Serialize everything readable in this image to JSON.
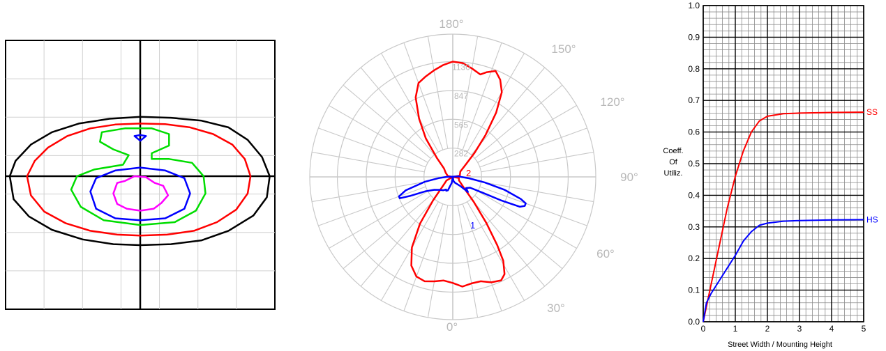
{
  "isolux": {
    "type": "contour",
    "title": "",
    "contours": [
      {
        "color": "#000000",
        "points": [
          [
            -6.8,
            0
          ],
          [
            -6.6,
            -1.2
          ],
          [
            -5.8,
            -2.1
          ],
          [
            -4.6,
            -2.8
          ],
          [
            -3.0,
            -3.3
          ],
          [
            -1.4,
            -3.55
          ],
          [
            0,
            -3.6
          ],
          [
            1.6,
            -3.55
          ],
          [
            3.2,
            -3.35
          ],
          [
            4.6,
            -2.85
          ],
          [
            5.9,
            -2.05
          ],
          [
            6.6,
            -1.1
          ],
          [
            6.75,
            0
          ],
          [
            6.35,
            1.0
          ],
          [
            5.6,
            1.9
          ],
          [
            4.6,
            2.55
          ],
          [
            3.2,
            2.9
          ],
          [
            1.6,
            3.05
          ],
          [
            0,
            3.1
          ],
          [
            -1.6,
            3.0
          ],
          [
            -3.2,
            2.75
          ],
          [
            -4.6,
            2.3
          ],
          [
            -5.7,
            1.65
          ],
          [
            -6.5,
            0.8
          ]
        ]
      },
      {
        "color": "#ff0000",
        "points": [
          [
            -5.9,
            0
          ],
          [
            -5.7,
            -1.0
          ],
          [
            -5.0,
            -1.85
          ],
          [
            -3.9,
            -2.45
          ],
          [
            -2.6,
            -2.85
          ],
          [
            -1.2,
            -3.05
          ],
          [
            0,
            -3.1
          ],
          [
            1.4,
            -3.05
          ],
          [
            2.8,
            -2.85
          ],
          [
            4.0,
            -2.4
          ],
          [
            5.0,
            -1.75
          ],
          [
            5.6,
            -0.9
          ],
          [
            5.75,
            0
          ],
          [
            5.45,
            0.9
          ],
          [
            4.8,
            1.65
          ],
          [
            3.8,
            2.2
          ],
          [
            2.6,
            2.55
          ],
          [
            1.3,
            2.72
          ],
          [
            0,
            2.75
          ],
          [
            -1.3,
            2.7
          ],
          [
            -2.6,
            2.5
          ],
          [
            -3.8,
            2.1
          ],
          [
            -4.8,
            1.5
          ],
          [
            -5.5,
            0.8
          ]
        ]
      },
      {
        "color": "#00dd00",
        "points": [
          [
            -2.0,
            2.3
          ],
          [
            -0.8,
            2.5
          ],
          [
            0.6,
            2.5
          ],
          [
            1.5,
            2.2
          ],
          [
            1.5,
            1.6
          ],
          [
            0.6,
            1.2
          ],
          [
            0.6,
            0.9
          ],
          [
            1.5,
            0.9
          ],
          [
            2.7,
            0.7
          ],
          [
            3.3,
            0
          ],
          [
            3.4,
            -0.9
          ],
          [
            2.9,
            -1.8
          ],
          [
            1.8,
            -2.4
          ],
          [
            0,
            -2.55
          ],
          [
            -1.9,
            -2.3
          ],
          [
            -3.1,
            -1.6
          ],
          [
            -3.6,
            -0.7
          ],
          [
            -3.3,
            0
          ],
          [
            -2.4,
            0.35
          ],
          [
            -0.9,
            0.6
          ],
          [
            -0.6,
            1.1
          ],
          [
            -1.4,
            1.4
          ],
          [
            -2.1,
            1.8
          ]
        ]
      },
      {
        "color": "#0000ff",
        "points": [
          [
            -2.6,
            -0.8
          ],
          [
            -2.3,
            -0.1
          ],
          [
            -1.3,
            0.3
          ],
          [
            0,
            0.45
          ],
          [
            1.3,
            0.3
          ],
          [
            2.3,
            -0.1
          ],
          [
            2.6,
            -0.9
          ],
          [
            2.3,
            -1.7
          ],
          [
            1.3,
            -2.2
          ],
          [
            0,
            -2.3
          ],
          [
            -1.3,
            -2.2
          ],
          [
            -2.3,
            -1.7
          ]
        ]
      },
      {
        "color": "#0000ff",
        "points": [
          [
            -0.3,
            2.1
          ],
          [
            0,
            1.85
          ],
          [
            0.3,
            2.1
          ],
          [
            0,
            2.15
          ]
        ]
      },
      {
        "color": "#ff00ff",
        "points": [
          [
            -1.4,
            -0.9
          ],
          [
            -1.2,
            -0.35
          ],
          [
            -0.8,
            -0.25
          ],
          [
            -0.3,
            0
          ],
          [
            0.3,
            -0.05
          ],
          [
            0.75,
            -0.35
          ],
          [
            1.2,
            -0.5
          ],
          [
            1.45,
            -1.0
          ],
          [
            1.1,
            -1.4
          ],
          [
            0.7,
            -1.7
          ],
          [
            0,
            -1.8
          ],
          [
            -0.7,
            -1.7
          ],
          [
            -1.2,
            -1.45
          ]
        ]
      }
    ]
  },
  "polar": {
    "type": "polar",
    "angle_labels": [
      "180°",
      "150°",
      "120°",
      "90°",
      "60°",
      "30°",
      "0°"
    ],
    "radial_labels": [
      "1130",
      "847",
      "565",
      "282"
    ],
    "radial_values": [
      1130,
      847,
      565,
      282
    ],
    "rmax": 1400,
    "curve_labels": [
      "2",
      "1"
    ],
    "series": [
      {
        "name": "2",
        "color": "#ff0000",
        "points": [
          [
            180,
            1130
          ],
          [
            175,
            1120
          ],
          [
            170,
            1080
          ],
          [
            165,
            1040
          ],
          [
            162,
            1080
          ],
          [
            158,
            1120
          ],
          [
            154,
            1060
          ],
          [
            150,
            960
          ],
          [
            146,
            760
          ],
          [
            142,
            520
          ],
          [
            138,
            320
          ],
          [
            134,
            180
          ],
          [
            125,
            90
          ],
          [
            100,
            70
          ],
          [
            90,
            0
          ],
          [
            80,
            60
          ],
          [
            60,
            70
          ],
          [
            45,
            160
          ],
          [
            40,
            320
          ],
          [
            36,
            560
          ],
          [
            33,
            800
          ],
          [
            31,
            960
          ],
          [
            28,
            1080
          ],
          [
            25,
            1120
          ],
          [
            20,
            1100
          ],
          [
            15,
            1060
          ],
          [
            10,
            1060
          ],
          [
            5,
            1080
          ],
          [
            0,
            1040
          ],
          [
            -5,
            1020
          ],
          [
            -10,
            1040
          ],
          [
            -15,
            1060
          ],
          [
            -20,
            1040
          ],
          [
            -25,
            960
          ],
          [
            -30,
            800
          ],
          [
            -35,
            560
          ],
          [
            -40,
            300
          ],
          [
            -45,
            160
          ],
          [
            -60,
            70
          ],
          [
            -90,
            0
          ],
          [
            -100,
            50
          ],
          [
            -120,
            80
          ],
          [
            -134,
            120
          ],
          [
            -140,
            240
          ],
          [
            -145,
            460
          ],
          [
            -150,
            660
          ],
          [
            -155,
            860
          ],
          [
            -160,
            980
          ],
          [
            -165,
            1020
          ],
          [
            -170,
            1060
          ],
          [
            -175,
            1100
          ],
          [
            -180,
            1130
          ]
        ]
      },
      {
        "name": "1",
        "color": "#0000ff",
        "points": [
          [
            95,
            60
          ],
          [
            90,
            80
          ],
          [
            85,
            160
          ],
          [
            80,
            320
          ],
          [
            76,
            520
          ],
          [
            72,
            700
          ],
          [
            70,
            760
          ],
          [
            68,
            760
          ],
          [
            66,
            720
          ],
          [
            64,
            520
          ],
          [
            62,
            330
          ],
          [
            58,
            200
          ],
          [
            50,
            170
          ],
          [
            45,
            210
          ],
          [
            40,
            120
          ],
          [
            30,
            80
          ],
          [
            20,
            60
          ],
          [
            10,
            40
          ],
          [
            0,
            0
          ],
          [
            -10,
            60
          ],
          [
            -20,
            140
          ],
          [
            -25,
            150
          ],
          [
            -28,
            140
          ],
          [
            -35,
            160
          ],
          [
            -45,
            180
          ],
          [
            -55,
            220
          ],
          [
            -62,
            300
          ],
          [
            -66,
            460
          ],
          [
            -68,
            560
          ],
          [
            -70,
            560
          ],
          [
            -74,
            480
          ],
          [
            -80,
            280
          ],
          [
            -85,
            140
          ],
          [
            -90,
            60
          ]
        ]
      }
    ]
  },
  "chart_data": {
    "type": "line",
    "title": "",
    "xlabel": "Street Width / Mounting Height",
    "ylabel": "Coeff. Of Utiliz.",
    "ylabel_lines": [
      "Coeff.",
      "Of",
      "Utiliz."
    ],
    "xlim": [
      0,
      5
    ],
    "ylim": [
      0,
      1.0
    ],
    "x_ticks": [
      "0",
      "1",
      "2",
      "3",
      "4",
      "5"
    ],
    "y_ticks": [
      "0.0",
      "0.1",
      "0.2",
      "0.3",
      "0.4",
      "0.5",
      "0.6",
      "0.7",
      "0.8",
      "0.9",
      "1.0"
    ],
    "grid": true,
    "series": [
      {
        "name": "SS",
        "color": "#ff0000",
        "x": [
          0,
          0.25,
          0.5,
          0.75,
          1.0,
          1.25,
          1.5,
          1.75,
          2.0,
          2.5,
          3.0,
          4.0,
          5.0
        ],
        "y": [
          0,
          0.12,
          0.24,
          0.36,
          0.46,
          0.54,
          0.6,
          0.635,
          0.65,
          0.658,
          0.66,
          0.662,
          0.663
        ]
      },
      {
        "name": "HS",
        "color": "#0000ff",
        "x": [
          0,
          0.1,
          0.25,
          0.5,
          0.75,
          1.0,
          1.25,
          1.5,
          1.75,
          2.0,
          2.5,
          3.0,
          4.0,
          5.0
        ],
        "y": [
          0,
          0.06,
          0.09,
          0.13,
          0.17,
          0.21,
          0.255,
          0.285,
          0.305,
          0.312,
          0.318,
          0.32,
          0.322,
          0.323
        ]
      }
    ]
  }
}
